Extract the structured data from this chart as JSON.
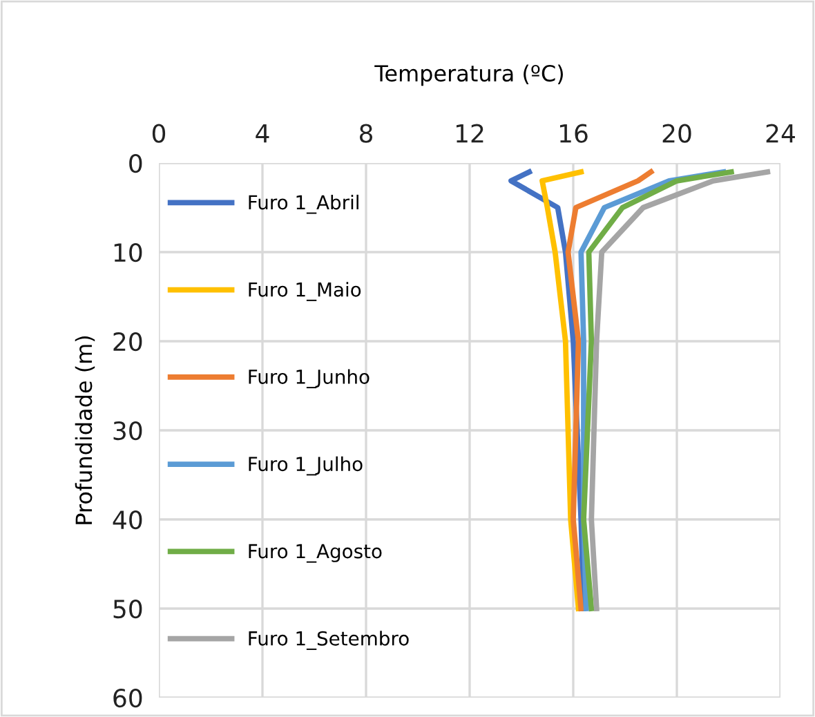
{
  "chart_data": {
    "type": "line",
    "xlabel": "Temperatura (ºC)",
    "ylabel": "Profundidade (m)",
    "xlim": [
      0,
      24
    ],
    "xticks": [
      0,
      4,
      8,
      12,
      16,
      20,
      24
    ],
    "ylim": [
      60,
      0
    ],
    "yticks": [
      0,
      10,
      20,
      30,
      40,
      50,
      60
    ],
    "grid": true,
    "legend": "left",
    "marker": "none",
    "line_style": "solid",
    "series": [
      {
        "name": "Furo 1_Abril",
        "color": "#4472c4",
        "x": [
          14.3,
          13.6,
          15.4,
          15.7,
          16.0,
          16.3,
          16.4
        ],
        "values": [
          1,
          2,
          5,
          10,
          20,
          40,
          50
        ]
      },
      {
        "name": "Furo 1_Maio",
        "color": "#ffc000",
        "x": [
          16.3,
          14.8,
          15.0,
          15.3,
          15.7,
          15.9,
          16.2
        ],
        "values": [
          1,
          2,
          5,
          10,
          20,
          40,
          50
        ]
      },
      {
        "name": "Furo 1_Junho",
        "color": "#ed7d31",
        "x": [
          19.0,
          18.5,
          16.1,
          15.8,
          16.2,
          16.0,
          16.3
        ],
        "values": [
          1,
          2,
          5,
          10,
          20,
          40,
          50
        ]
      },
      {
        "name": "Furo 1_Julho",
        "color": "#5b9bd5",
        "x": [
          21.8,
          19.7,
          17.2,
          16.3,
          16.4,
          16.4,
          16.5
        ],
        "values": [
          1,
          2,
          5,
          10,
          20,
          40,
          50
        ]
      },
      {
        "name": "Furo 1_Agosto",
        "color": "#70ad47",
        "x": [
          22.1,
          20.0,
          17.9,
          16.6,
          16.7,
          16.4,
          16.7
        ],
        "values": [
          1,
          2,
          5,
          10,
          20,
          40,
          50
        ]
      },
      {
        "name": "Furo 1_Setembro",
        "color": "#a5a5a5",
        "x": [
          23.5,
          21.4,
          18.7,
          17.1,
          16.9,
          16.7,
          16.9
        ],
        "values": [
          1,
          2,
          5,
          10,
          20,
          40,
          50
        ]
      }
    ]
  }
}
